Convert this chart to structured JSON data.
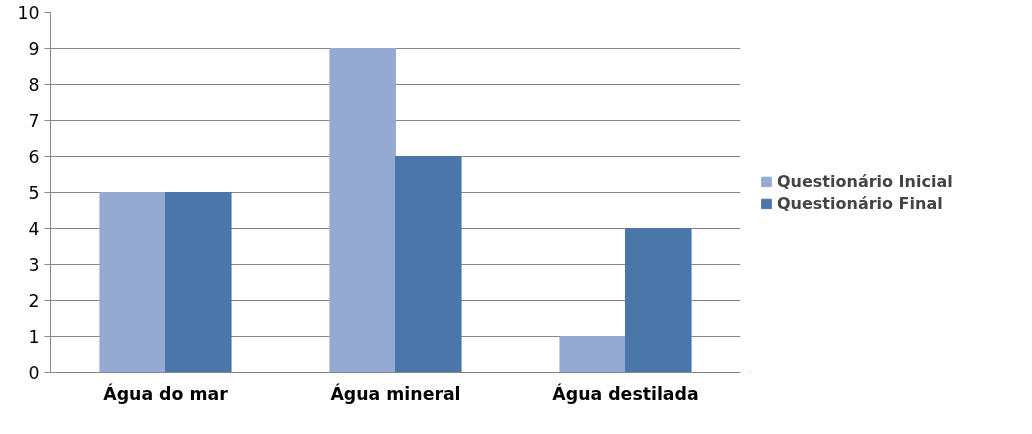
{
  "chart_data": {
    "type": "bar",
    "categories": [
      "Água do mar",
      "Água mineral",
      "Água destilada"
    ],
    "series": [
      {
        "name": "Questionário Inicial",
        "color": "#95a9d2",
        "values": [
          5,
          9,
          1
        ]
      },
      {
        "name": "Questionário Final",
        "color": "#4a76aa",
        "values": [
          5,
          6,
          4
        ]
      }
    ],
    "ylim": [
      0,
      10
    ],
    "yticks": [
      0,
      1,
      2,
      3,
      4,
      5,
      6,
      7,
      8,
      9,
      10
    ],
    "grid": "y",
    "legend": "right"
  }
}
